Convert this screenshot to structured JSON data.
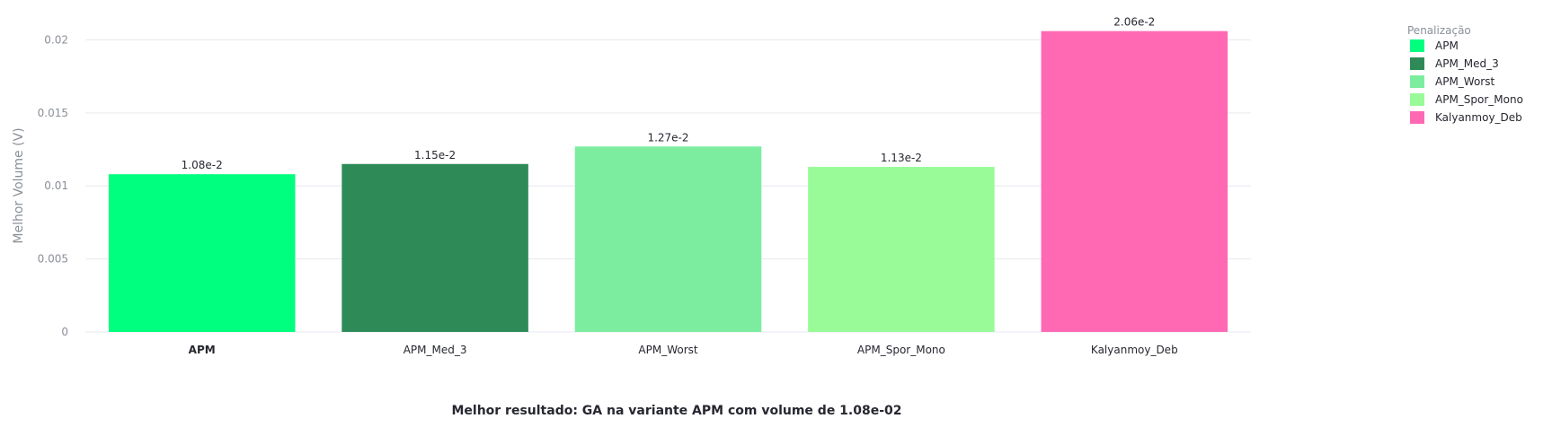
{
  "chart_data": {
    "type": "bar",
    "categories": [
      "APM",
      "APM_Med_3",
      "APM_Worst",
      "APM_Spor_Mono",
      "Kalyanmoy_Deb"
    ],
    "values": [
      0.0108,
      0.0115,
      0.0127,
      0.0113,
      0.0206
    ],
    "value_labels": [
      "1.08e-2",
      "1.15e-2",
      "1.27e-2",
      "1.13e-2",
      "2.06e-2"
    ],
    "colors": [
      "#00ff7f",
      "#2e8b57",
      "#7ced9e",
      "#98fb98",
      "#ff69b4"
    ],
    "highlight_category": "APM",
    "title": "",
    "xlabel": "Melhor resultado: GA na variante APM com volume de 1.08e-02",
    "ylabel": "Melhor Volume (V)",
    "ylim": [
      0,
      0.0215
    ],
    "yticks": [
      0,
      0.005,
      0.01,
      0.015,
      0.02
    ],
    "ytick_labels": [
      "0",
      "0.005",
      "0.01",
      "0.015",
      "0.02"
    ],
    "grid": true,
    "legend": {
      "title": "Penalização",
      "placement": "top-right",
      "entries": [
        "APM",
        "APM_Med_3",
        "APM_Worst",
        "APM_Spor_Mono",
        "Kalyanmoy_Deb"
      ]
    }
  }
}
